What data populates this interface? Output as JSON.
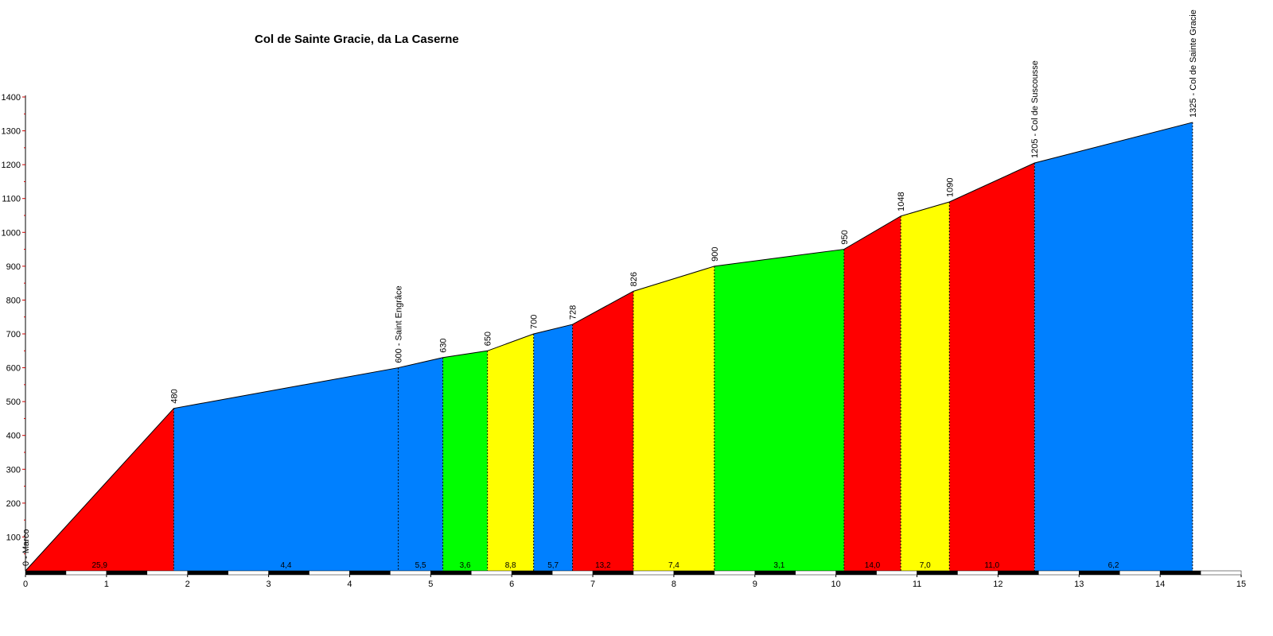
{
  "chart_data": {
    "type": "area",
    "title": "Col de Sainte Gracie, da La Caserne",
    "xlabel": "",
    "ylabel": "",
    "xlim": [
      0,
      15
    ],
    "ylim": [
      0,
      1400
    ],
    "x_ticks": [
      "0",
      "1",
      "2",
      "3",
      "4",
      "5",
      "6",
      "7",
      "8",
      "9",
      "10",
      "11",
      "12",
      "13",
      "14",
      "15"
    ],
    "y_ticks": [
      "100",
      "200",
      "300",
      "400",
      "500",
      "600",
      "700",
      "800",
      "900",
      "1000",
      "1100",
      "1200",
      "1300",
      "1400"
    ],
    "grade_colors": {
      "red": "#ff0000",
      "blue": "#0080ff",
      "green": "#00ff00",
      "yellow": "#ffff00"
    },
    "profile": [
      {
        "km": 0.0,
        "alt": 0,
        "label": "0 - Marco"
      },
      {
        "km": 1.83,
        "alt": 480,
        "label": "480"
      },
      {
        "km": 4.6,
        "alt": 600,
        "label": "600 - Saint Engrâce"
      },
      {
        "km": 5.15,
        "alt": 630,
        "label": "630"
      },
      {
        "km": 5.7,
        "alt": 650,
        "label": "650"
      },
      {
        "km": 6.27,
        "alt": 700,
        "label": "700"
      },
      {
        "km": 6.75,
        "alt": 728,
        "label": "728"
      },
      {
        "km": 7.5,
        "alt": 826,
        "label": "826"
      },
      {
        "km": 8.5,
        "alt": 900,
        "label": "900"
      },
      {
        "km": 10.1,
        "alt": 950,
        "label": "950"
      },
      {
        "km": 10.8,
        "alt": 1048,
        "label": "1048"
      },
      {
        "km": 11.4,
        "alt": 1090,
        "label": "1090"
      },
      {
        "km": 12.45,
        "alt": 1205,
        "label": "1205 - Col de Suscousse"
      },
      {
        "km": 14.4,
        "alt": 1325,
        "label": "1325 - Col de Sainte Gracie"
      }
    ],
    "segments": [
      {
        "grade": "25,9",
        "color": "red"
      },
      {
        "grade": "4,4",
        "color": "blue"
      },
      {
        "grade": "5,5",
        "color": "blue"
      },
      {
        "grade": "3,6",
        "color": "green"
      },
      {
        "grade": "8,8",
        "color": "yellow"
      },
      {
        "grade": "5,7",
        "color": "blue"
      },
      {
        "grade": "13,2",
        "color": "red"
      },
      {
        "grade": "7,4",
        "color": "yellow"
      },
      {
        "grade": "3,1",
        "color": "green"
      },
      {
        "grade": "14,0",
        "color": "red"
      },
      {
        "grade": "7,0",
        "color": "yellow"
      },
      {
        "grade": "11,0",
        "color": "red"
      },
      {
        "grade": "6,2",
        "color": "blue"
      }
    ],
    "grid": false,
    "legend": "none"
  }
}
